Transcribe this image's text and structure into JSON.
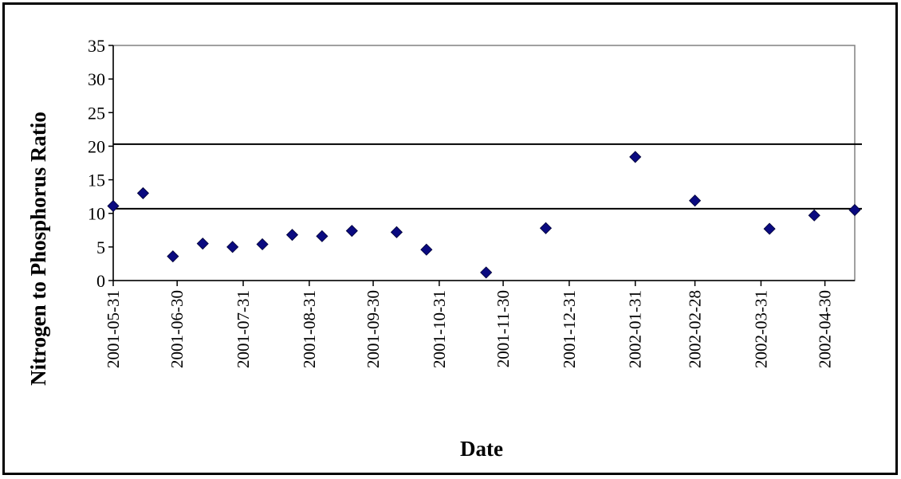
{
  "chart_data": {
    "type": "scatter",
    "title": "",
    "xlabel": "Date",
    "ylabel": "Nitrogen to Phosphorus Ratio",
    "x_type": "date",
    "xlim": [
      "2001-05-31",
      "2002-05-14"
    ],
    "ylim": [
      0,
      35
    ],
    "y_ticks": [
      0,
      5,
      10,
      15,
      20,
      25,
      30,
      35
    ],
    "x_ticks": [
      "2001-05-31",
      "2001-06-30",
      "2001-07-31",
      "2001-08-31",
      "2001-09-30",
      "2001-10-31",
      "2001-11-30",
      "2001-12-31",
      "2002-01-31",
      "2002-02-28",
      "2002-03-31",
      "2002-04-30"
    ],
    "grid": false,
    "legend": "none",
    "marker": "diamond",
    "marker_color": "#0a0a80",
    "reference_lines": [
      {
        "y": 10.7,
        "color": "#000000"
      },
      {
        "y": 20.3,
        "color": "#000000"
      }
    ],
    "points": [
      {
        "x": "2001-05-31",
        "y": 11.1
      },
      {
        "x": "2001-06-14",
        "y": 13.0
      },
      {
        "x": "2001-06-28",
        "y": 3.6
      },
      {
        "x": "2001-07-12",
        "y": 5.5
      },
      {
        "x": "2001-07-26",
        "y": 5.0
      },
      {
        "x": "2001-08-09",
        "y": 5.4
      },
      {
        "x": "2001-08-23",
        "y": 6.8
      },
      {
        "x": "2001-09-06",
        "y": 6.6
      },
      {
        "x": "2001-09-20",
        "y": 7.4
      },
      {
        "x": "2001-10-11",
        "y": 7.2
      },
      {
        "x": "2001-10-25",
        "y": 4.6
      },
      {
        "x": "2001-11-22",
        "y": 1.2
      },
      {
        "x": "2001-12-20",
        "y": 7.8
      },
      {
        "x": "2002-01-31",
        "y": 18.4
      },
      {
        "x": "2002-02-28",
        "y": 11.9
      },
      {
        "x": "2002-04-04",
        "y": 7.7
      },
      {
        "x": "2002-04-25",
        "y": 9.7
      },
      {
        "x": "2002-05-14",
        "y": 10.5
      }
    ]
  }
}
